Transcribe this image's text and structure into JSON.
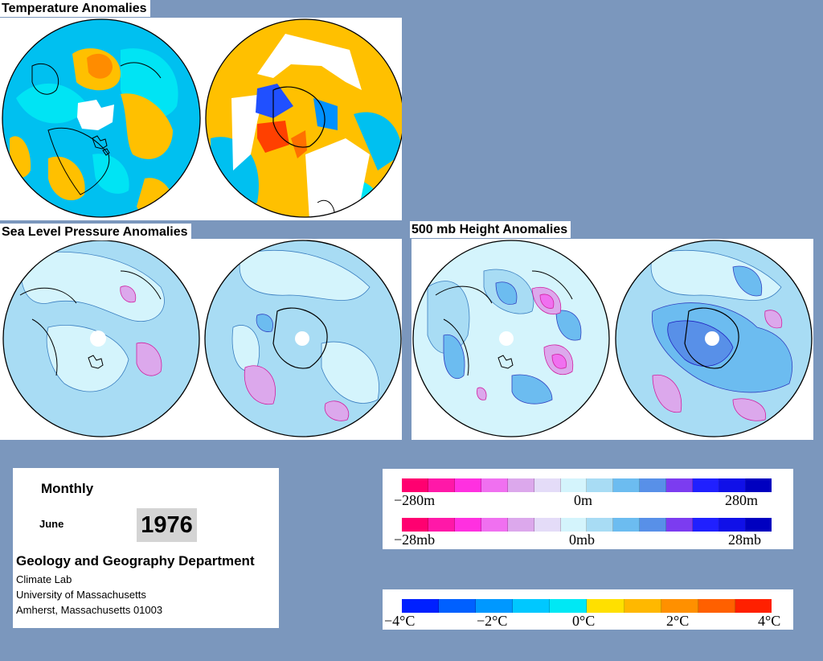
{
  "titles": {
    "temperature": "Temperature Anomalies",
    "slp": "Sea Level Pressure Anomalies",
    "height500": "500 mb Height Anomalies"
  },
  "info": {
    "frequency": "Monthly",
    "month": "June",
    "year": "1976",
    "department": "Geology and Geography Department",
    "lines": [
      "Climate Lab",
      "University of Massachusetts",
      "Amherst, Massachusetts 01003"
    ]
  },
  "legends": {
    "height": {
      "labels": [
        "−280m",
        "0m",
        "280m"
      ]
    },
    "pressure": {
      "labels": [
        "−28mb",
        "0mb",
        "28mb"
      ]
    },
    "temperature": {
      "labels": [
        "−4°C",
        "−2°C",
        "0°C",
        "2°C",
        "4°C"
      ]
    }
  },
  "colors": {
    "background": "#7b97bd",
    "anomaly_scale": [
      "#ff0070",
      "#ff18a8",
      "#ff30e0",
      "#f070f0",
      "#dca8ec",
      "#e4dcf8",
      "#d4f4fc",
      "#a8dcf4",
      "#6cbcf0",
      "#5890e8",
      "#7c3cf0",
      "#2020ff",
      "#1010e8",
      "#0000c0"
    ],
    "temperature_scale": [
      "#0020ff",
      "#0060ff",
      "#0098ff",
      "#00c8ff",
      "#00e8f4",
      "#ffe000",
      "#ffb800",
      "#ff9000",
      "#ff6000",
      "#ff2000"
    ]
  }
}
